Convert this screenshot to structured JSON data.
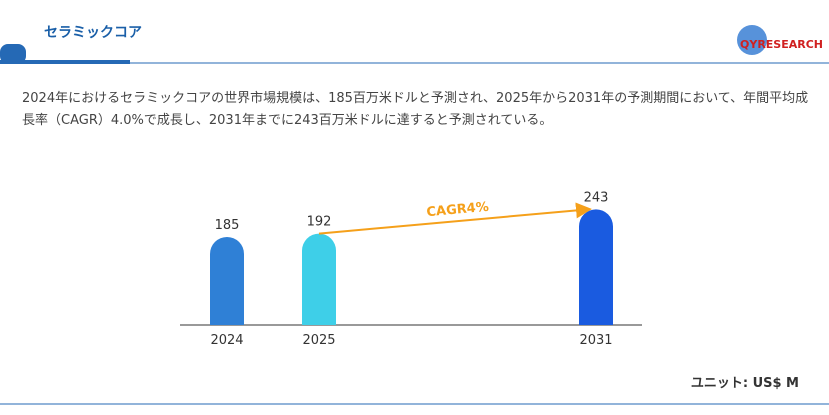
{
  "header": {
    "title": "セラミックコア",
    "logo": "QYRESEARCH"
  },
  "description": "2024年におけるセラミックコアの世界市場規模は、185百万米ドルと予測され、2025年から2031年の予測期間において、年間平均成長率（CAGR）4.0%で成長し、2031年までに243百万米ドルに達すると予測されている。",
  "chart_data": {
    "type": "bar",
    "categories": [
      "2024",
      "2025",
      "2031"
    ],
    "values": [
      185,
      192,
      243
    ],
    "colors": [
      "#2f80d6",
      "#3ecfe8",
      "#1a5be0"
    ],
    "annotation": "CAGR4%",
    "annotation_color": "#f5a01a"
  },
  "unit": "ユニット: US$ M"
}
